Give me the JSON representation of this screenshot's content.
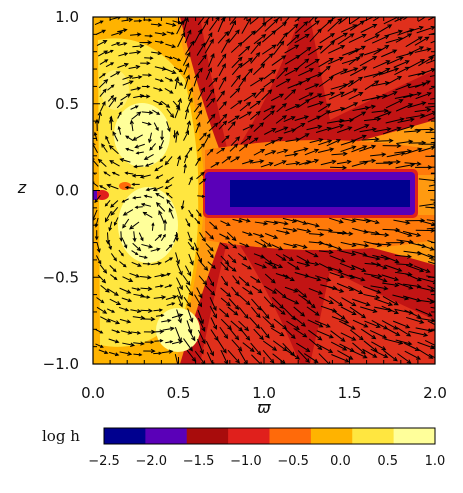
{
  "chart_data": {
    "type": "heatmap",
    "title": "",
    "xlabel": "ϖ",
    "ylabel": "z",
    "xlim": [
      0.0,
      2.0
    ],
    "ylim": [
      -1.0,
      1.0
    ],
    "xticks": [
      "0.0",
      "0.5",
      "1.0",
      "1.5",
      "2.0"
    ],
    "xtick_values": [
      0.0,
      0.5,
      1.0,
      1.5,
      2.0
    ],
    "yticks": [
      "−1.0",
      "−0.5",
      "0.0",
      "0.5",
      "1.0"
    ],
    "ytick_values": [
      -1.0,
      -0.5,
      0.0,
      0.5,
      1.0
    ],
    "overlay": "velocity vector arrows",
    "colorbar": {
      "label": "log h",
      "ticks": [
        "−2.5",
        "−2.0",
        "−1.5",
        "−1.0",
        "−0.5",
        "0.0",
        "0.5",
        "1.0"
      ],
      "tick_values": [
        -2.5,
        -2.0,
        -1.5,
        -1.0,
        -0.5,
        0.0,
        0.5,
        1.0
      ],
      "colors": [
        "#00008f",
        "#5a00b8",
        "#a80c0c",
        "#e0201c",
        "#ff6a0a",
        "#ffb300",
        "#ffe640",
        "#ffff9a"
      ]
    },
    "regions": [
      {
        "name": "disk",
        "xlim": [
          0.6,
          1.9
        ],
        "zlim": [
          -0.12,
          0.12
        ],
        "value": -2.25
      },
      {
        "name": "disk-core",
        "xlim": [
          0.75,
          1.85
        ],
        "zlim": [
          -0.07,
          0.07
        ],
        "value": -2.6
      }
    ]
  }
}
